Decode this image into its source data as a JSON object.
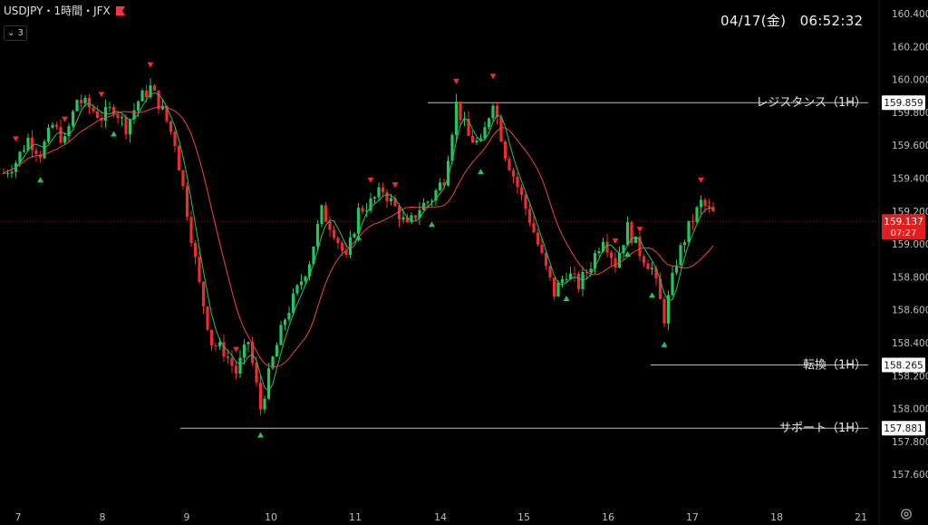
{
  "header": {
    "symbol": "USDJPY・1時間・JFX",
    "indicator_count": "3",
    "flag_color": "#f23645"
  },
  "clock": "04/17(金)　06:52:32",
  "colors": {
    "bull": "#22c55e",
    "bear": "#ef2b2b",
    "ma_fast": "#22c55e",
    "ma_slow": "#ef4444",
    "marker_up": "#22c55e",
    "marker_down": "#ef2b2b",
    "level_line": "#bfbfbf",
    "current_price_bg": "#e01e1e"
  },
  "chart_data": {
    "type": "candlestick",
    "x_axis": {
      "ticks": [
        {
          "label": "7",
          "day": 7
        },
        {
          "label": "8",
          "day": 8
        },
        {
          "label": "9",
          "day": 9
        },
        {
          "label": "10",
          "day": 10
        },
        {
          "label": "11",
          "day": 11
        },
        {
          "label": "14",
          "day": 14
        },
        {
          "label": "15",
          "day": 15
        },
        {
          "label": "16",
          "day": 16
        },
        {
          "label": "17",
          "day": 17
        },
        {
          "label": "18",
          "day": 18
        },
        {
          "label": "21",
          "day": 21
        }
      ]
    },
    "y_axis": {
      "range": [
        157.5,
        160.5
      ],
      "ticks": [
        "160.400",
        "160.200",
        "160.000",
        "159.800",
        "159.600",
        "159.400",
        "159.200",
        "159.000",
        "158.800",
        "158.600",
        "158.400",
        "158.200",
        "158.000",
        "157.800",
        "157.600"
      ]
    },
    "levels": [
      {
        "label": "レジスタンス（1H）",
        "price": 159.859,
        "price_label": "159.859"
      },
      {
        "label": "転換（1H）",
        "price": 158.265,
        "price_label": "158.265"
      },
      {
        "label": "サポート（1H）",
        "price": 157.881,
        "price_label": "157.881"
      }
    ],
    "current_price": {
      "price": 159.137,
      "price_label": "159.137",
      "countdown": "07:27"
    },
    "waypoints": [
      [
        0,
        159.43
      ],
      [
        1,
        159.5
      ],
      [
        2,
        159.64
      ],
      [
        3,
        159.55
      ],
      [
        4,
        159.72
      ],
      [
        5,
        159.62
      ],
      [
        6,
        159.88
      ],
      [
        7,
        159.83
      ],
      [
        8,
        159.77
      ],
      [
        9,
        159.83
      ],
      [
        10,
        159.71
      ],
      [
        11,
        159.87
      ],
      [
        12,
        159.95
      ],
      [
        13,
        159.81
      ],
      [
        14,
        159.62
      ],
      [
        15,
        159.2
      ],
      [
        16,
        158.75
      ],
      [
        17,
        158.4
      ],
      [
        18,
        158.35
      ],
      [
        19,
        158.22
      ],
      [
        20,
        158.41
      ],
      [
        21,
        158.0
      ],
      [
        22,
        158.3
      ],
      [
        23,
        158.55
      ],
      [
        24,
        158.72
      ],
      [
        25,
        158.9
      ],
      [
        26,
        159.2
      ],
      [
        27,
        159.08
      ],
      [
        28,
        158.9
      ],
      [
        29,
        159.2
      ],
      [
        30,
        159.25
      ],
      [
        31,
        159.33
      ],
      [
        32,
        159.22
      ],
      [
        33,
        159.1
      ],
      [
        34,
        159.22
      ],
      [
        35,
        159.28
      ],
      [
        36,
        159.4
      ],
      [
        37,
        159.85
      ],
      [
        38,
        159.65
      ],
      [
        39,
        159.6
      ],
      [
        40,
        159.88
      ],
      [
        41,
        159.55
      ],
      [
        42,
        159.35
      ],
      [
        43,
        159.15
      ],
      [
        44,
        158.92
      ],
      [
        45,
        158.7
      ],
      [
        46,
        158.83
      ],
      [
        47,
        158.75
      ],
      [
        48,
        158.88
      ],
      [
        49,
        159.05
      ],
      [
        50,
        158.88
      ],
      [
        51,
        159.1
      ],
      [
        52,
        158.95
      ],
      [
        53,
        158.85
      ],
      [
        54,
        158.55
      ],
      [
        55,
        158.9
      ],
      [
        56,
        159.1
      ],
      [
        57,
        159.25
      ],
      [
        58,
        159.18
      ]
    ],
    "markers": [
      {
        "type": "down",
        "i": 1
      },
      {
        "type": "down",
        "i": 5
      },
      {
        "type": "up",
        "i": 3
      },
      {
        "type": "down",
        "i": 8
      },
      {
        "type": "up",
        "i": 9
      },
      {
        "type": "down",
        "i": 12
      },
      {
        "type": "down",
        "i": 19
      },
      {
        "type": "up",
        "i": 21
      },
      {
        "type": "down",
        "i": 30
      },
      {
        "type": "up",
        "i": 29
      },
      {
        "type": "down",
        "i": 32
      },
      {
        "type": "up",
        "i": 35
      },
      {
        "type": "down",
        "i": 37
      },
      {
        "type": "down",
        "i": 40
      },
      {
        "type": "up",
        "i": 39
      },
      {
        "type": "up",
        "i": 46
      },
      {
        "type": "down",
        "i": 50
      },
      {
        "type": "down",
        "i": 52
      },
      {
        "type": "up",
        "i": 51
      },
      {
        "type": "up",
        "i": 53
      },
      {
        "type": "up",
        "i": 54
      },
      {
        "type": "down",
        "i": 57
      }
    ]
  }
}
